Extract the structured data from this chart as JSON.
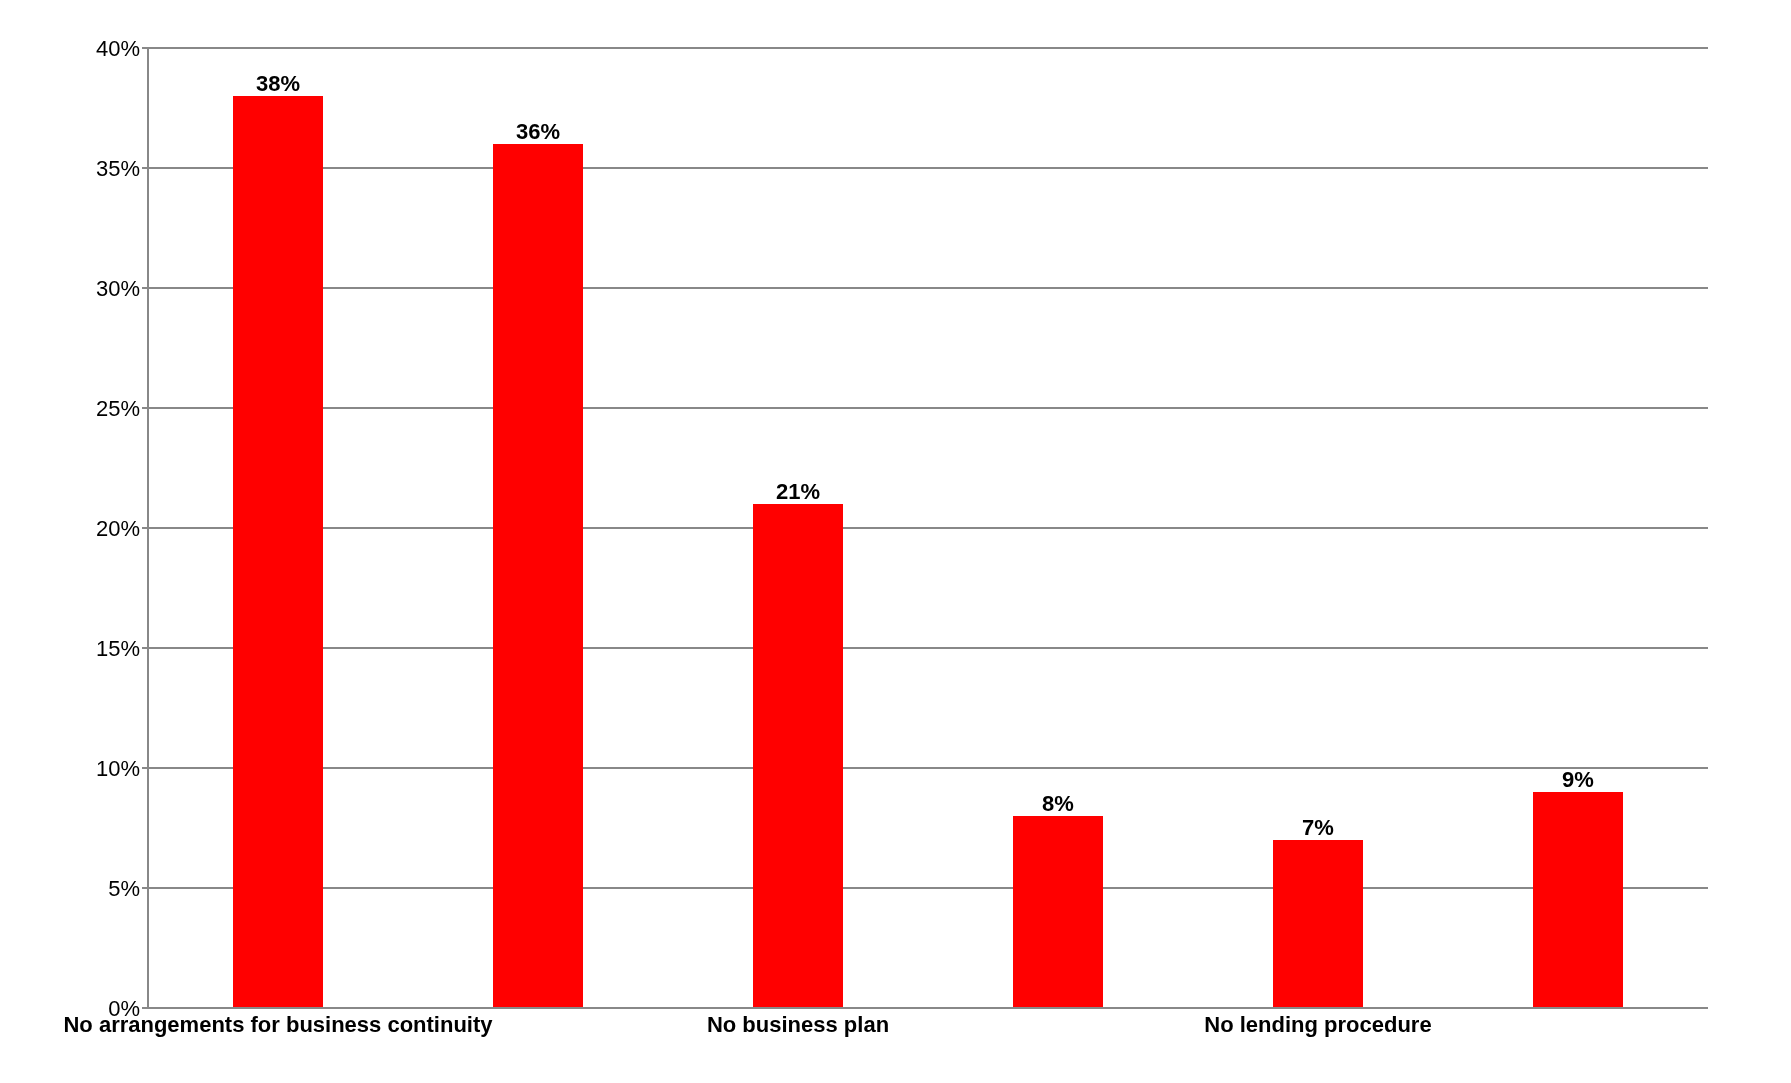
{
  "chart_data": {
    "type": "bar",
    "categories": [
      "No arrangements for business continuity",
      null,
      "No business plan",
      null,
      "No lending procedure",
      null
    ],
    "values": [
      38,
      36,
      21,
      8,
      7,
      9
    ],
    "value_labels": [
      "38%",
      "36%",
      "21%",
      "8%",
      "7%",
      "9%"
    ],
    "color": "#ff0000",
    "ylim": [
      0,
      40
    ],
    "yticks": [
      {
        "value": 0,
        "label": "0%"
      },
      {
        "value": 5,
        "label": "5%"
      },
      {
        "value": 10,
        "label": "10%"
      },
      {
        "value": 15,
        "label": "15%"
      },
      {
        "value": 20,
        "label": "20%"
      },
      {
        "value": 25,
        "label": "25%"
      },
      {
        "value": 30,
        "label": "30%"
      },
      {
        "value": 35,
        "label": "35%"
      },
      {
        "value": 40,
        "label": "40%"
      }
    ],
    "grid": "y"
  }
}
